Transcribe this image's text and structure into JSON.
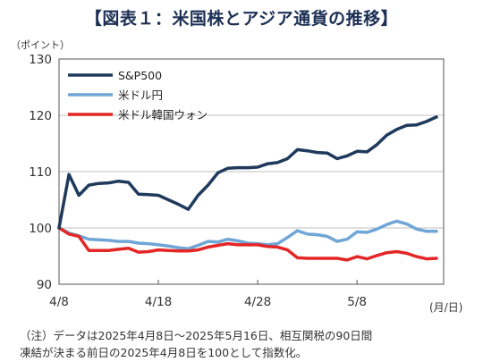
{
  "title": "【図表１：米国株とアジア通貨の推移】",
  "y_unit": "（ポイント）",
  "x_unit": "(月/日)",
  "note_lines": [
    "（注）データは2025年4月8日～2025年5月16日、相互関税の90日間",
    "凍結が決まる前日の2025年4月8日を100として指数化。"
  ],
  "colors": {
    "sp500": "#1f3a5c",
    "usdjpy": "#6fa6d6",
    "usdkrw": "#e32626",
    "grid": "#bfbfbf",
    "axis": "#555555"
  },
  "chart_data": {
    "type": "line",
    "title": "【図表１：米国株とアジア通貨の推移】",
    "xlabel": "(月/日)",
    "ylabel": "（ポイント）",
    "ylim": [
      90,
      130
    ],
    "yticks": [
      90,
      100,
      110,
      120,
      130
    ],
    "xticks": [
      {
        "day": 0,
        "label": "4/8"
      },
      {
        "day": 10,
        "label": "4/18"
      },
      {
        "day": 20,
        "label": "4/28"
      },
      {
        "day": 30,
        "label": "5/8"
      }
    ],
    "grid": true,
    "legend_position": "top-left",
    "x": [
      0,
      1,
      2,
      3,
      4,
      5,
      6,
      7,
      8,
      9,
      10,
      11,
      12,
      13,
      14,
      15,
      16,
      17,
      18,
      19,
      20,
      21,
      22,
      23,
      24,
      25,
      26,
      27,
      28,
      29,
      30,
      31,
      32,
      33,
      34,
      35,
      36,
      37,
      38
    ],
    "series": [
      {
        "name": "S&P500",
        "values": [
          100,
          109.5,
          105.8,
          107.6,
          107.9,
          108.0,
          108.3,
          108.1,
          106.0,
          105.9,
          105.8,
          105.0,
          104.2,
          103.3,
          105.8,
          107.6,
          109.8,
          110.6,
          110.7,
          110.7,
          110.8,
          111.4,
          111.6,
          112.3,
          113.9,
          113.7,
          113.4,
          113.3,
          112.3,
          112.8,
          113.6,
          113.5,
          114.8,
          116.5,
          117.5,
          118.2,
          118.3,
          118.9,
          119.7
        ]
      },
      {
        "name": "米ドル円",
        "values": [
          100,
          99.1,
          98.6,
          98.0,
          97.9,
          97.8,
          97.6,
          97.6,
          97.3,
          97.2,
          97.0,
          96.8,
          96.5,
          96.3,
          96.9,
          97.6,
          97.5,
          98.0,
          97.7,
          97.3,
          97.2,
          97.0,
          97.2,
          98.3,
          99.5,
          98.9,
          98.8,
          98.5,
          97.6,
          98.0,
          99.3,
          99.2,
          99.8,
          100.6,
          101.2,
          100.7,
          99.8,
          99.4,
          99.4
        ]
      },
      {
        "name": "米ドル韓国ウォン",
        "values": [
          100,
          98.9,
          98.5,
          96.0,
          96.0,
          96.0,
          96.2,
          96.4,
          95.7,
          95.8,
          96.1,
          96.0,
          95.9,
          95.9,
          96.1,
          96.6,
          96.9,
          97.2,
          97.0,
          97.0,
          97.0,
          96.7,
          96.6,
          96.1,
          94.7,
          94.6,
          94.6,
          94.6,
          94.6,
          94.3,
          94.9,
          94.5,
          95.1,
          95.6,
          95.8,
          95.5,
          94.9,
          94.5,
          94.6
        ]
      }
    ]
  }
}
